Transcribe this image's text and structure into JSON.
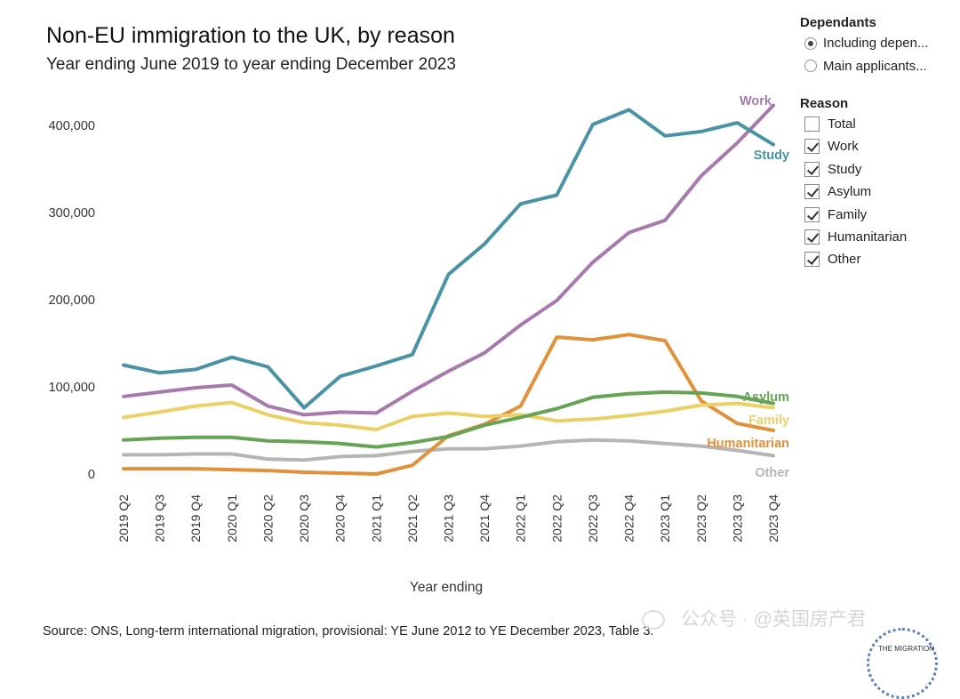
{
  "header": {
    "title": "Non-EU immigration to the UK, by reason",
    "subtitle": "Year ending June 2019 to year ending December 2023"
  },
  "legend": {
    "dependants_heading": "Dependants",
    "dependants_options": [
      {
        "label": "Including depen...",
        "selected": true
      },
      {
        "label": "Main applicants...",
        "selected": false
      }
    ],
    "reason_heading": "Reason",
    "reason_options": [
      {
        "label": "Total",
        "checked": false
      },
      {
        "label": "Work",
        "checked": true
      },
      {
        "label": "Study",
        "checked": true
      },
      {
        "label": "Asylum",
        "checked": true
      },
      {
        "label": "Family",
        "checked": true
      },
      {
        "label": "Humanitarian",
        "checked": true
      },
      {
        "label": "Other",
        "checked": true
      }
    ]
  },
  "source": "Source: ONS, Long-term international migration, provisional: YE June 2012 to YE December 2023, Table 3.",
  "watermark": "公众号 · @英国房产君",
  "badge_text": "THE MIGRATION",
  "chart_data": {
    "type": "line",
    "title": "Non-EU immigration to the UK, by reason",
    "subtitle": "Year ending June 2019 to year ending December 2023",
    "xlabel": "Year ending",
    "ylabel": "",
    "ylim": [
      0,
      430000
    ],
    "yticks": [
      0,
      100000,
      200000,
      300000,
      400000
    ],
    "ytick_labels": [
      "0",
      "100,000",
      "200,000",
      "300,000",
      "400,000"
    ],
    "grid": false,
    "categories": [
      "2019 Q2",
      "2019 Q3",
      "2019 Q4",
      "2020 Q1",
      "2020 Q2",
      "2020 Q3",
      "2020 Q4",
      "2021 Q1",
      "2021 Q2",
      "2021 Q3",
      "2021 Q4",
      "2022 Q1",
      "2022 Q2",
      "2022 Q3",
      "2022 Q4",
      "2023 Q1",
      "2023 Q2",
      "2023 Q3",
      "2023 Q4"
    ],
    "series": [
      {
        "name": "Other",
        "color": "#b5b5b5",
        "values": [
          22000,
          22000,
          23000,
          23000,
          17000,
          16000,
          20000,
          21000,
          26000,
          29000,
          29000,
          32000,
          37000,
          39000,
          38000,
          35000,
          32000,
          27000,
          21000
        ]
      },
      {
        "name": "Humanitarian",
        "color": "#e0913a",
        "values": [
          6000,
          6000,
          6000,
          5000,
          4000,
          2000,
          1000,
          0,
          10000,
          44000,
          57000,
          78000,
          157000,
          154000,
          160000,
          153000,
          84000,
          58000,
          50000
        ]
      },
      {
        "name": "Family",
        "color": "#ead066",
        "values": [
          65000,
          71000,
          78000,
          82000,
          68000,
          59000,
          56000,
          51000,
          66000,
          70000,
          66000,
          68000,
          61000,
          63000,
          67000,
          72000,
          79000,
          81000,
          76000
        ]
      },
      {
        "name": "Asylum",
        "color": "#66a354",
        "values": [
          39000,
          41000,
          42000,
          42000,
          38000,
          37000,
          35000,
          31000,
          36000,
          43000,
          56000,
          65000,
          75000,
          88000,
          92000,
          94000,
          93000,
          89000,
          81000
        ]
      },
      {
        "name": "Work",
        "color": "#a67aac",
        "values": [
          89000,
          94000,
          99000,
          102000,
          78000,
          68000,
          71000,
          70000,
          95000,
          118000,
          139000,
          171000,
          199000,
          243000,
          277000,
          291000,
          342000,
          380000,
          423000
        ]
      },
      {
        "name": "Study",
        "color": "#4a93a6",
        "values": [
          125000,
          116000,
          120000,
          134000,
          123000,
          76000,
          112000,
          124000,
          137000,
          229000,
          264000,
          310000,
          320000,
          401000,
          418000,
          388000,
          393000,
          403000,
          378000
        ]
      }
    ],
    "end_labels": [
      {
        "series": "Work",
        "label": "Work",
        "color": "#a67aac"
      },
      {
        "series": "Study",
        "label": "Study",
        "color": "#4a93a6"
      },
      {
        "series": "Asylum",
        "label": "Asylum",
        "color": "#66a354"
      },
      {
        "series": "Family",
        "label": "Family",
        "color": "#ead066"
      },
      {
        "series": "Humanitarian",
        "label": "Humanitarian",
        "color": "#e0913a"
      },
      {
        "series": "Other",
        "label": "Other",
        "color": "#b5b5b5"
      }
    ]
  }
}
